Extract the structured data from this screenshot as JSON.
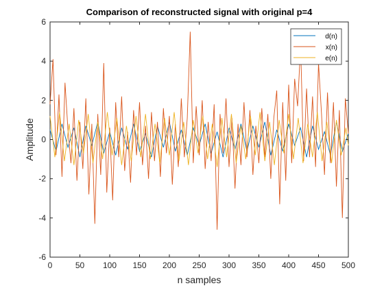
{
  "chart_data": {
    "type": "line",
    "title": "Comparison of reconstructed signal with original p=4",
    "xlabel": "n samples",
    "ylabel": "Amplitude",
    "xlim": [
      0,
      500
    ],
    "ylim": [
      -6,
      6
    ],
    "xticks": [
      "0",
      "50",
      "100",
      "150",
      "200",
      "250",
      "300",
      "350",
      "400",
      "450",
      "500"
    ],
    "yticks": [
      "-6",
      "-4",
      "-2",
      "0",
      "2",
      "4",
      "6"
    ],
    "grid": false,
    "legend_position": "top-right",
    "series": [
      {
        "name": "d(n)",
        "color": "#0072BD",
        "x": [
          0,
          10,
          20,
          30,
          40,
          50,
          60,
          70,
          80,
          90,
          100,
          110,
          120,
          130,
          140,
          150,
          160,
          170,
          180,
          190,
          200,
          210,
          220,
          230,
          240,
          250,
          260,
          270,
          280,
          290,
          300,
          310,
          320,
          330,
          340,
          350,
          360,
          370,
          380,
          390,
          400,
          410,
          420,
          430,
          440,
          450,
          460,
          470,
          480,
          490,
          500
        ],
        "y": [
          0.5,
          -0.6,
          0.8,
          -0.4,
          0.6,
          -0.9,
          0.7,
          -0.3,
          0.9,
          -0.7,
          0.4,
          -0.8,
          0.6,
          -0.5,
          0.8,
          -0.6,
          0.3,
          -0.9,
          0.7,
          -0.4,
          0.9,
          -0.6,
          0.5,
          -0.8,
          0.6,
          -0.3,
          0.8,
          -0.7,
          0.4,
          -0.9,
          0.6,
          -0.5,
          0.8,
          -0.6,
          0.7,
          -0.4,
          0.9,
          -0.8,
          0.5,
          -0.6,
          0.8,
          -0.3,
          0.6,
          -0.9,
          0.7,
          -0.5,
          0.4,
          -0.8,
          0.9,
          -0.6,
          0.3
        ]
      },
      {
        "name": "x(n)",
        "color": "#D95319",
        "x": [
          0,
          5,
          10,
          15,
          20,
          25,
          30,
          35,
          40,
          45,
          50,
          55,
          60,
          65,
          70,
          75,
          80,
          85,
          90,
          95,
          100,
          105,
          110,
          115,
          120,
          125,
          130,
          135,
          140,
          145,
          150,
          155,
          160,
          165,
          170,
          175,
          180,
          185,
          190,
          195,
          200,
          205,
          210,
          215,
          220,
          225,
          230,
          235,
          240,
          245,
          250,
          255,
          260,
          265,
          270,
          275,
          280,
          285,
          290,
          295,
          300,
          305,
          310,
          315,
          320,
          325,
          330,
          335,
          340,
          345,
          350,
          355,
          360,
          365,
          370,
          375,
          380,
          385,
          390,
          395,
          400,
          405,
          410,
          415,
          420,
          425,
          430,
          435,
          440,
          445,
          450,
          455,
          460,
          465,
          470,
          475,
          480,
          485,
          490,
          495,
          500
        ],
        "y": [
          1.8,
          4.1,
          -0.8,
          2.3,
          -1.9,
          2.9,
          0.5,
          -1.2,
          1.6,
          -2.1,
          0.9,
          -1.5,
          2.1,
          -2.8,
          0.8,
          -4.3,
          1.3,
          -1.8,
          3.9,
          -2.7,
          0.6,
          -3.1,
          1.9,
          -0.9,
          2.2,
          -1.6,
          0.4,
          -2.2,
          1.5,
          -0.8,
          1.9,
          -1.3,
          0.7,
          -2.0,
          1.4,
          -1.1,
          0.9,
          -1.9,
          1.6,
          -0.7,
          1.2,
          -2.3,
          0.8,
          -1.4,
          2.1,
          -0.9,
          1.1,
          5.5,
          -1.2,
          1.7,
          -0.8,
          2.0,
          -1.5,
          0.9,
          -1.1,
          1.8,
          -4.6,
          1.3,
          -0.7,
          2.1,
          -1.4,
          1.1,
          -2.5,
          0.8,
          -1.3,
          1.9,
          -0.9,
          1.5,
          -1.8,
          0.7,
          -1.2,
          1.6,
          -0.9,
          1.3,
          -2.0,
          1.1,
          2.5,
          -3.3,
          1.9,
          -2.1,
          2.8,
          -1.2,
          3.1,
          1.7,
          4.8,
          -1.1,
          2.6,
          -0.9,
          2.2,
          -1.4,
          3.9,
          1.3,
          -1.8,
          2.4,
          -1.2,
          1.9,
          -2.4,
          1.5,
          -4.0,
          2.1,
          0.3
        ]
      },
      {
        "name": "e(n)",
        "color": "#EDB120",
        "x": [
          0,
          8,
          16,
          24,
          32,
          40,
          48,
          56,
          64,
          72,
          80,
          88,
          96,
          104,
          112,
          120,
          128,
          136,
          144,
          152,
          160,
          168,
          176,
          184,
          192,
          200,
          208,
          216,
          224,
          232,
          240,
          248,
          256,
          264,
          272,
          280,
          288,
          296,
          304,
          312,
          320,
          328,
          336,
          344,
          352,
          360,
          368,
          376,
          384,
          392,
          400,
          408,
          416,
          424,
          432,
          440,
          448,
          456,
          464,
          472,
          480,
          488,
          496,
          500
        ],
        "y": [
          1.2,
          -0.9,
          1.4,
          -1.1,
          0.8,
          -1.3,
          1.0,
          -0.7,
          1.3,
          -1.2,
          0.9,
          -1.0,
          1.4,
          -0.8,
          1.1,
          -1.3,
          0.7,
          -1.1,
          1.2,
          -0.9,
          1.3,
          -1.0,
          0.8,
          -1.2,
          1.1,
          -0.8,
          1.4,
          -1.1,
          0.9,
          -1.3,
          1.0,
          -0.7,
          1.2,
          -1.0,
          0.8,
          -1.4,
          1.1,
          -0.9,
          1.3,
          -1.2,
          0.7,
          -1.0,
          1.2,
          -0.8,
          1.4,
          -1.1,
          0.9,
          -1.3,
          1.0,
          -0.7,
          1.3,
          -1.0,
          1.1,
          -1.2,
          0.8,
          -0.9,
          1.4,
          -1.1,
          0.9,
          -1.2,
          1.0,
          -0.8,
          0.6,
          -0.3
        ]
      }
    ]
  }
}
